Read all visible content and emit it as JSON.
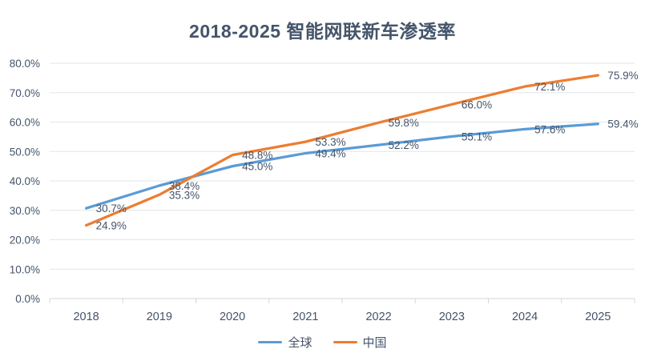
{
  "chart_data": {
    "type": "line",
    "title": "2018-2025 智能网联新车渗透率",
    "categories": [
      "2018",
      "2019",
      "2020",
      "2021",
      "2022",
      "2023",
      "2024",
      "2025"
    ],
    "series": [
      {
        "name": "全球",
        "slug": "global",
        "color": "#5B9BD5",
        "values": [
          30.7,
          38.4,
          45.0,
          49.4,
          52.2,
          55.1,
          57.6,
          59.4
        ]
      },
      {
        "name": "中国",
        "slug": "china",
        "color": "#ED7D31",
        "values": [
          24.9,
          35.3,
          48.8,
          53.3,
          59.8,
          66.0,
          72.1,
          75.9
        ]
      }
    ],
    "ylim": [
      0,
      80
    ],
    "y_tick_step": 10,
    "y_tick_labels": [
      "0.0%",
      "10.0%",
      "20.0%",
      "30.0%",
      "40.0%",
      "50.0%",
      "60.0%",
      "70.0%",
      "80.0%"
    ],
    "data_label_suffix": "%",
    "legend_position": "bottom",
    "grid": true,
    "colors": {
      "title": "#44546A",
      "axis_text": "#44546A",
      "data_label_text": "#44546A",
      "gridline": "#E1E6EC",
      "axis_line": "#D0D7DE",
      "background": "#FFFFFF"
    }
  }
}
